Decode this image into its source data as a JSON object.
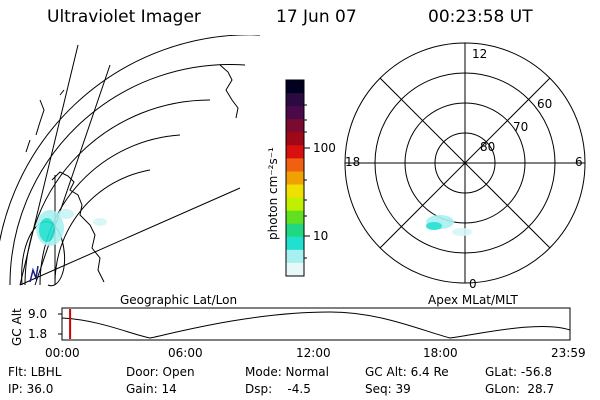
{
  "header": {
    "instrument": "Ultraviolet Imager",
    "date": "17 Jun 07",
    "time": "00:23:58 UT"
  },
  "left_panel": {
    "caption": "Geographic Lat/Lon"
  },
  "colorbar": {
    "unit_label": "photon cm⁻²s⁻¹",
    "tick_labels": [
      "100",
      "10"
    ],
    "colors": [
      "#000020",
      "#2a0a40",
      "#4a0a4a",
      "#7a0a30",
      "#a00818",
      "#d81010",
      "#f06010",
      "#f0a000",
      "#f0e000",
      "#c0f000",
      "#60e020",
      "#20d880",
      "#20e0d0",
      "#a8f0f0",
      "#e8f8f8"
    ]
  },
  "polar_plot": {
    "caption": "Apex MLat/MLT",
    "mlt_labels": {
      "top": "12",
      "left": "18",
      "right": "6",
      "bottom": "0"
    },
    "lat_labels": [
      "60",
      "70",
      "80"
    ]
  },
  "altitude_strip": {
    "axis_title": "GC Alt",
    "y_ticks": [
      "9.0",
      "1.8"
    ],
    "time_ticks": [
      "00:00",
      "06:00",
      "12:00",
      "18:00",
      "23:59"
    ],
    "marker_time": "00:23",
    "marker_color": "#d00000"
  },
  "footer": {
    "row1": {
      "flt": "Flt: LBHL",
      "door": "Door: Open",
      "mode": "Mode: Normal",
      "gc_alt": "GC Alt: 6.4 Re",
      "glat": "GLat: -56.8"
    },
    "row2": {
      "ip": "IP: 36.0",
      "gain": "Gain: 14",
      "dsp": "Dsp:    -4.5",
      "seq": "Seq: 39",
      "glon": "GLon:  28.7"
    }
  }
}
